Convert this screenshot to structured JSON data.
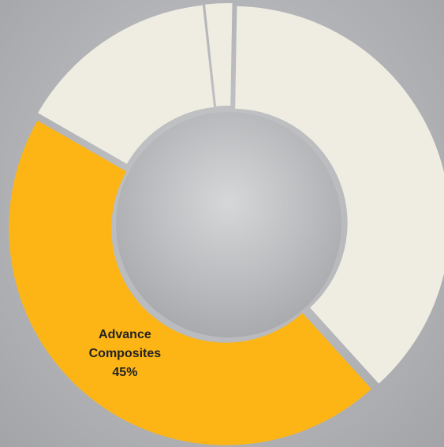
{
  "chart_data": {
    "type": "donut",
    "categories": [
      null,
      "Advance Composites",
      null,
      null
    ],
    "values": [
      38,
      45,
      15,
      2
    ],
    "value_labels": [
      null,
      "45%",
      null,
      null
    ],
    "colors": [
      "#efece2",
      "#fdb515",
      "#efece2",
      "#efece2"
    ]
  }
}
